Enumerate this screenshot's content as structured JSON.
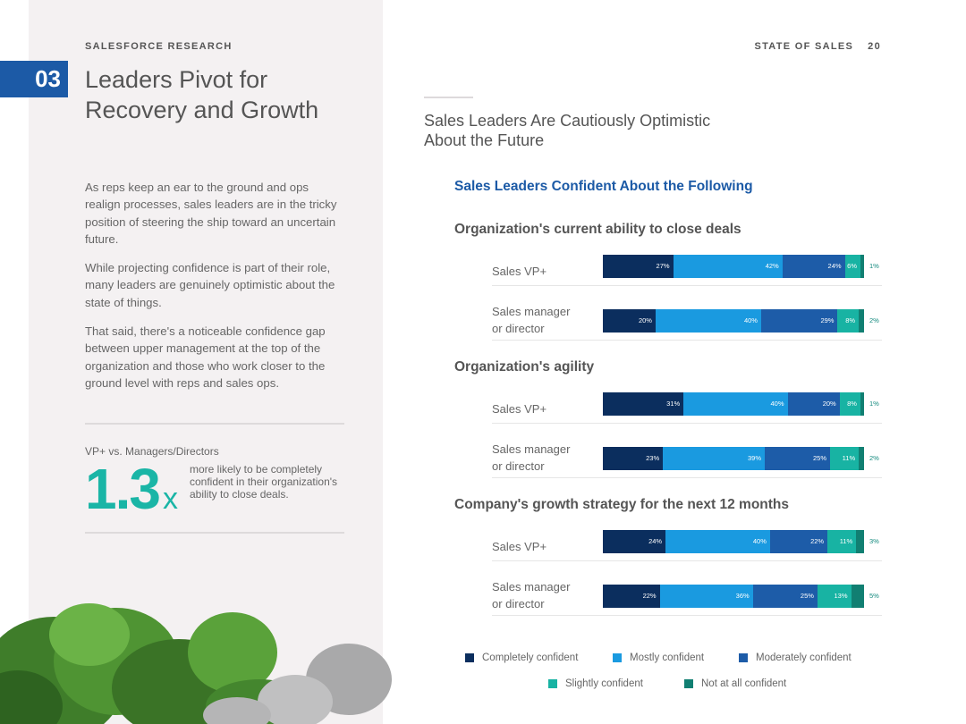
{
  "header": {
    "kicker": "SALESFORCE RESEARCH",
    "report": "STATE OF SALES",
    "page_number": "20"
  },
  "left": {
    "section_number": "03",
    "title_line1": "Leaders Pivot for",
    "title_line2": "Recovery and Growth",
    "paragraphs": [
      "As reps keep an ear to the ground and ops realign processes, sales leaders are in the tricky position of steering the ship toward an uncertain future.",
      "While projecting confidence is part of their role, many leaders are genuinely optimistic about the state of things.",
      "That said, there's a noticeable confidence gap between upper management at the top of the organization and those who work closer to the ground level with reps and sales ops."
    ],
    "stat": {
      "label": "VP+ vs. Managers/Directors",
      "value": "1.3",
      "suffix": "x",
      "description": "more likely to be completely confident in their organization's ability to close deals."
    }
  },
  "right": {
    "title_line1": "Sales Leaders Are Cautiously Optimistic",
    "title_line2": "About the Future"
  },
  "colors": {
    "completely": "#0b2e5e",
    "mostly": "#1a9ae0",
    "moderately": "#1d5ca8",
    "slightly": "#18b3a3",
    "not_at_all": "#117f72",
    "accent_blue": "#1c5aa6",
    "accent_teal": "#1ab5a6"
  },
  "chart_data": {
    "type": "bar",
    "orientation": "horizontal-stacked-100",
    "title": "Sales Leaders Confident About the Following",
    "legend_position": "bottom",
    "series_names": [
      "Completely confident",
      "Mostly confident",
      "Moderately confident",
      "Slightly confident",
      "Not at all confident"
    ],
    "groups": [
      {
        "title": "Organization's current ability to close deals",
        "rows": [
          {
            "label_line1": "Sales VP+",
            "label_line2": "",
            "values": [
              27,
              42,
              24,
              6,
              1
            ]
          },
          {
            "label_line1": "Sales manager",
            "label_line2": "or director",
            "values": [
              20,
              40,
              29,
              8,
              2
            ]
          }
        ]
      },
      {
        "title": "Organization's agility",
        "rows": [
          {
            "label_line1": "Sales VP+",
            "label_line2": "",
            "values": [
              31,
              40,
              20,
              8,
              1
            ]
          },
          {
            "label_line1": "Sales manager",
            "label_line2": "or director",
            "values": [
              23,
              39,
              25,
              11,
              2
            ]
          }
        ]
      },
      {
        "title": "Company's growth strategy for the next 12 months",
        "rows": [
          {
            "label_line1": "Sales VP+",
            "label_line2": "",
            "values": [
              24,
              40,
              22,
              11,
              3
            ]
          },
          {
            "label_line1": "Sales manager",
            "label_line2": "or director",
            "values": [
              22,
              36,
              25,
              13,
              5
            ]
          }
        ]
      }
    ],
    "xlim": [
      0,
      100
    ],
    "value_suffix": "%"
  }
}
